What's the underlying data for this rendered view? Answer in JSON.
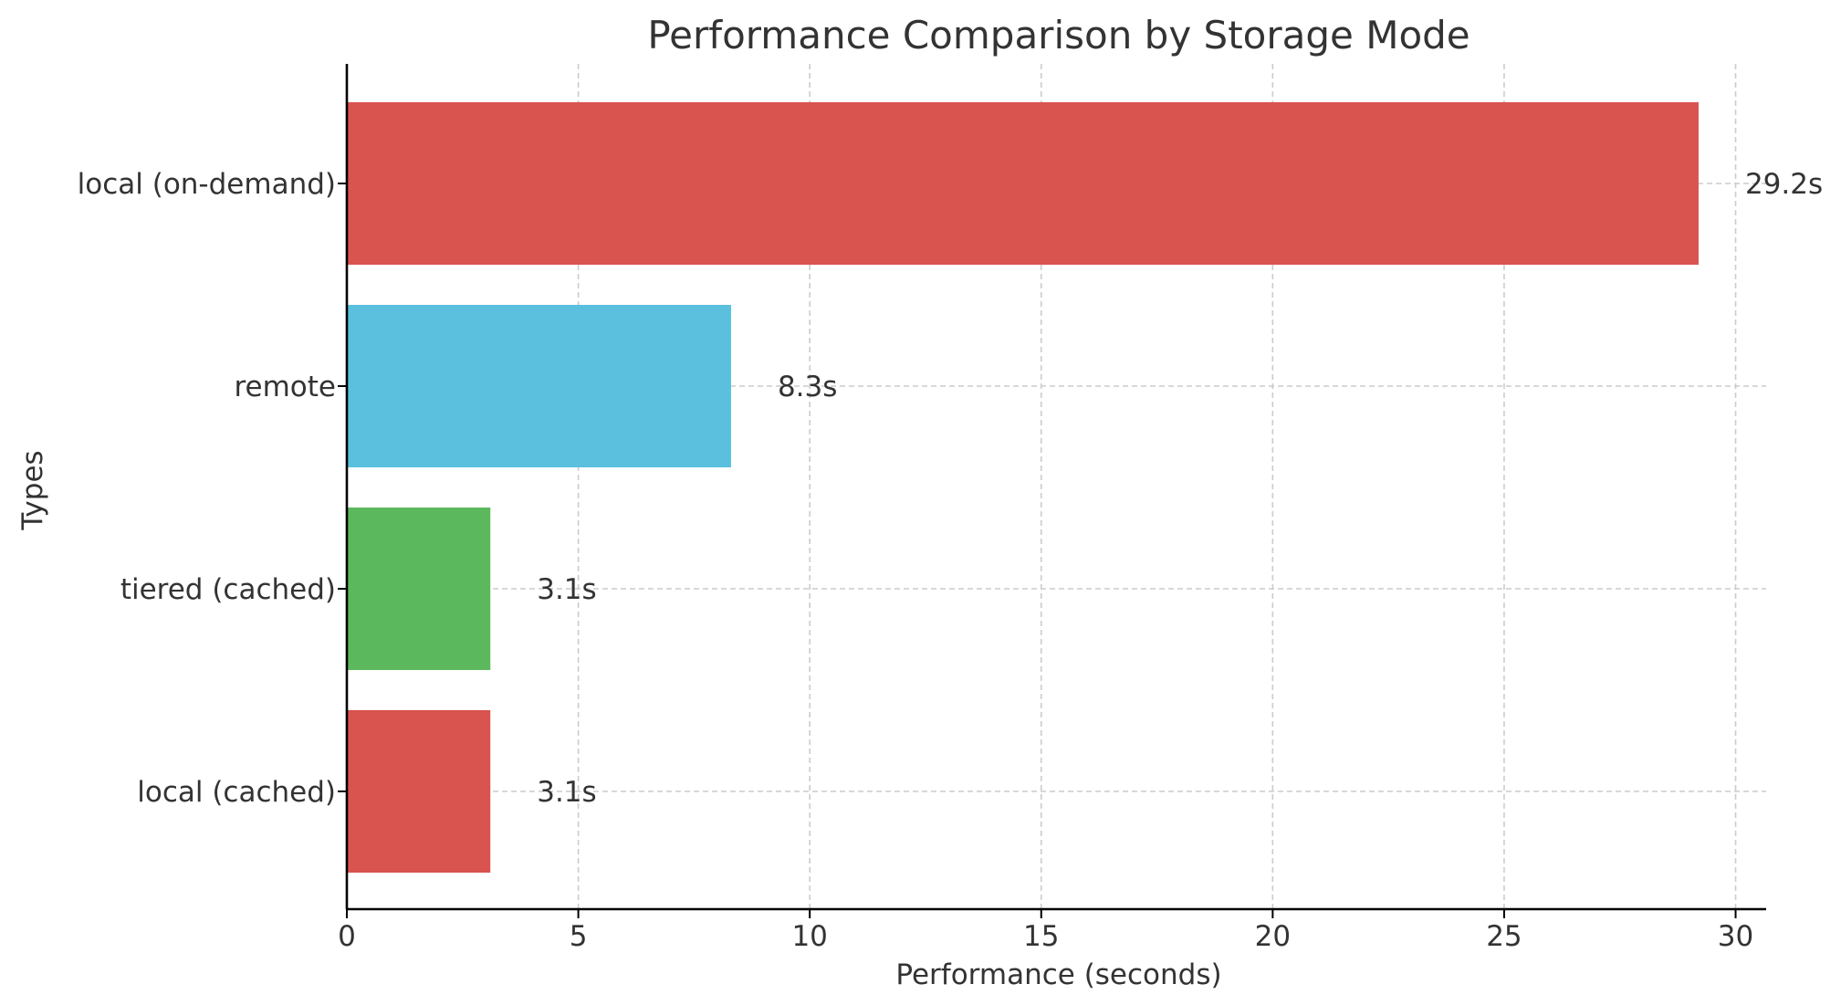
{
  "chart_data": {
    "type": "bar",
    "orientation": "horizontal",
    "title": "Performance Comparison by Storage Mode",
    "xlabel": "Performance (seconds)",
    "ylabel": "Types",
    "categories": [
      "local (cached)",
      "tiered (cached)",
      "remote",
      "local (on-demand)"
    ],
    "values": [
      3.1,
      3.1,
      8.3,
      29.2
    ],
    "data_labels": [
      "3.1s",
      "3.1s",
      "8.3s",
      "29.2s"
    ],
    "colors": [
      "#d9534f",
      "#5cb85c",
      "#5bc0de",
      "#d9534f"
    ],
    "xlim": [
      0,
      30.66
    ],
    "xticks": [
      0,
      5,
      10,
      15,
      20,
      25,
      30
    ],
    "grid": true,
    "legend": "none"
  }
}
